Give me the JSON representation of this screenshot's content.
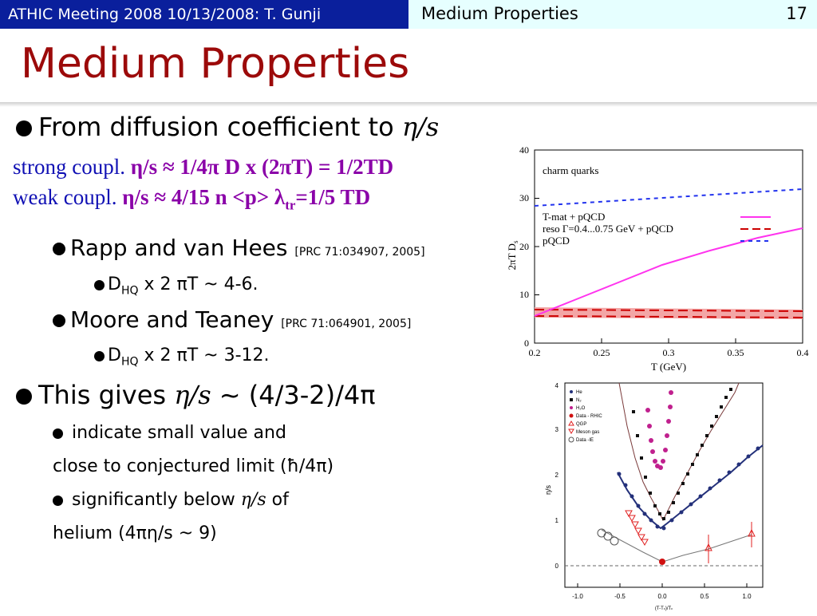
{
  "header": {
    "left": "ATHIC Meeting 2008 10/13/2008: T. Gunji",
    "center": "Medium Properties",
    "page": "17"
  },
  "title": "Medium Properties",
  "b1": {
    "prefix": "From diffusion coefficient to ",
    "eta_s": "η/s"
  },
  "strong": {
    "label": "strong coupl. ",
    "formula": "η/s ≈ 1/4π D x (2πT) = 1/2TD"
  },
  "weak": {
    "label": "weak coupl.  ",
    "formula_a": "η/s ≈ 4/15 n <p> λ",
    "sub": "tr",
    "formula_b": "=1/5 TD"
  },
  "rapp": {
    "text": "Rapp and van Hees ",
    "ref": "[PRC 71:034907, 2005]"
  },
  "rapp_sub": {
    "d": "D",
    "hq": "HQ",
    "rest": " x 2 πT ~ 4-6."
  },
  "moore": {
    "text": "Moore and Teaney ",
    "ref": "[PRC 71:064901, 2005]"
  },
  "moore_sub": {
    "d": "D",
    "hq": "HQ",
    "rest": " x 2 πT ~ 3-12."
  },
  "gives": {
    "prefix": "This gives ",
    "eta_s": "η/s",
    "rest": " ~ (4/3-2)/4π"
  },
  "indicate": {
    "line1": "indicate small value and",
    "line2": "close to conjectured limit (ħ/4π)"
  },
  "below": {
    "line1a": "significantly below ",
    "eta_s": "η/s",
    "line1b": " of",
    "line2": "helium (4πη/s ~ 9)"
  },
  "fig1": {
    "label": "charm quarks",
    "ylabel": "2πT D",
    "ysub": "s",
    "xlabel": "T (GeV)",
    "legend": [
      "T-mat + pQCD",
      "reso Γ=0.4...0.75 GeV + pQCD",
      "pQCD"
    ],
    "xticks": [
      "0.2",
      "0.25",
      "0.3",
      "0.35",
      "0.4"
    ],
    "yticks": [
      "0",
      "10",
      "20",
      "30",
      "40"
    ]
  },
  "fig2": {
    "legend": [
      "He",
      "N₂",
      "H₂O",
      "Data - RHIC",
      "QGP",
      "Meson gas",
      "Data -IE"
    ],
    "ylabel": "η/s",
    "xlabel": "(T-T",
    "xsub": "c",
    "xlabel_b": ")/T",
    "xsub2": "c",
    "xticks": [
      "-1.0",
      "-0.5",
      "0.0",
      "0.5",
      "1.0"
    ],
    "yticks": [
      "0",
      "1",
      "2",
      "3",
      "4"
    ]
  }
}
